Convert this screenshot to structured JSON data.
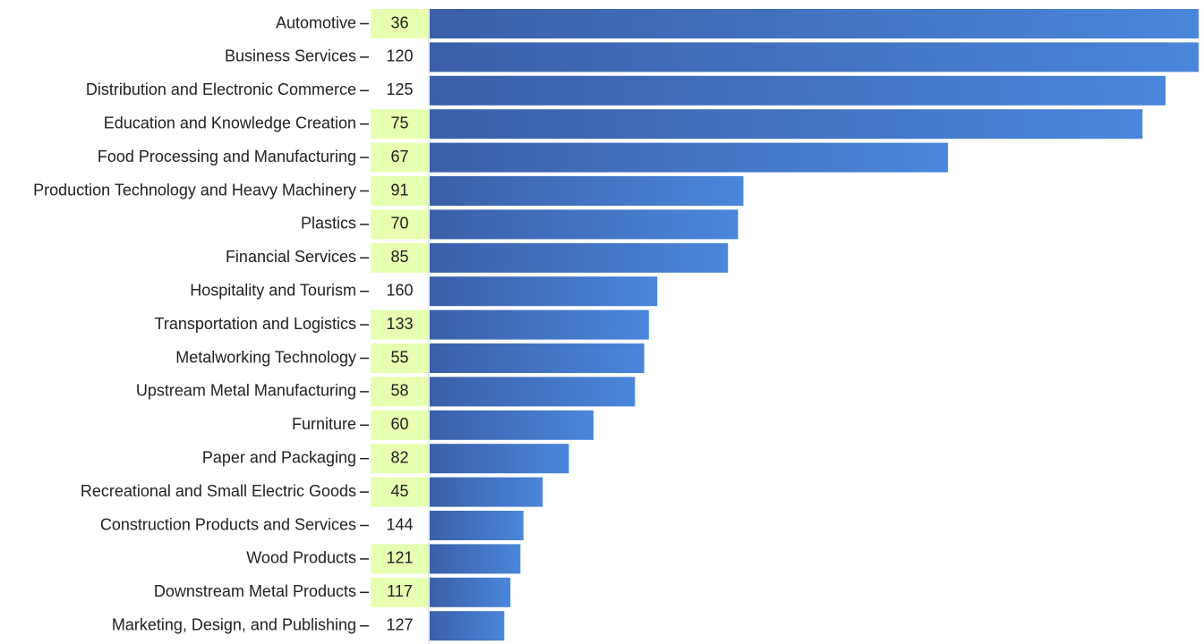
{
  "chart_data": {
    "type": "bar",
    "orientation": "horizontal",
    "categories": [
      "Automotive",
      "Business Services",
      "Distribution and Electronic Commerce",
      "Education and Knowledge Creation",
      "Food Processing and Manufacturing",
      "Production Technology and Heavy Machinery",
      "Plastics",
      "Financial Services",
      "Hospitality and Tourism",
      "Transportation and Logistics",
      "Metalworking Technology",
      "Upstream Metal Manufacturing",
      "Furniture",
      "Paper and Packaging",
      "Recreational and Small Electric Goods",
      "Construction Products and Services",
      "Wood Products",
      "Downstream Metal Products",
      "Marketing, Design, and Publishing"
    ],
    "ranks": [
      "36",
      "120",
      "125",
      "75",
      "67",
      "91",
      "70",
      "85",
      "160",
      "133",
      "55",
      "58",
      "60",
      "82",
      "45",
      "144",
      "121",
      "117",
      "127"
    ],
    "rank_highlighted": [
      true,
      false,
      false,
      true,
      true,
      true,
      true,
      true,
      false,
      true,
      true,
      true,
      true,
      true,
      true,
      false,
      true,
      true,
      false
    ],
    "values": [
      100,
      100,
      95.7,
      92.7,
      67.4,
      40.8,
      40.1,
      38.8,
      29.6,
      28.5,
      27.9,
      26.7,
      21.3,
      18.1,
      14.7,
      12.2,
      11.8,
      10.5,
      9.7
    ],
    "xlim": [
      0,
      100
    ],
    "title": "",
    "xlabel": "",
    "ylabel": "",
    "grid": false,
    "colors": {
      "bar_start": "#3b5fa8",
      "bar_end": "#4a86db",
      "highlight": "#e6ffb0",
      "text": "#222222",
      "tick": "#222222"
    }
  }
}
